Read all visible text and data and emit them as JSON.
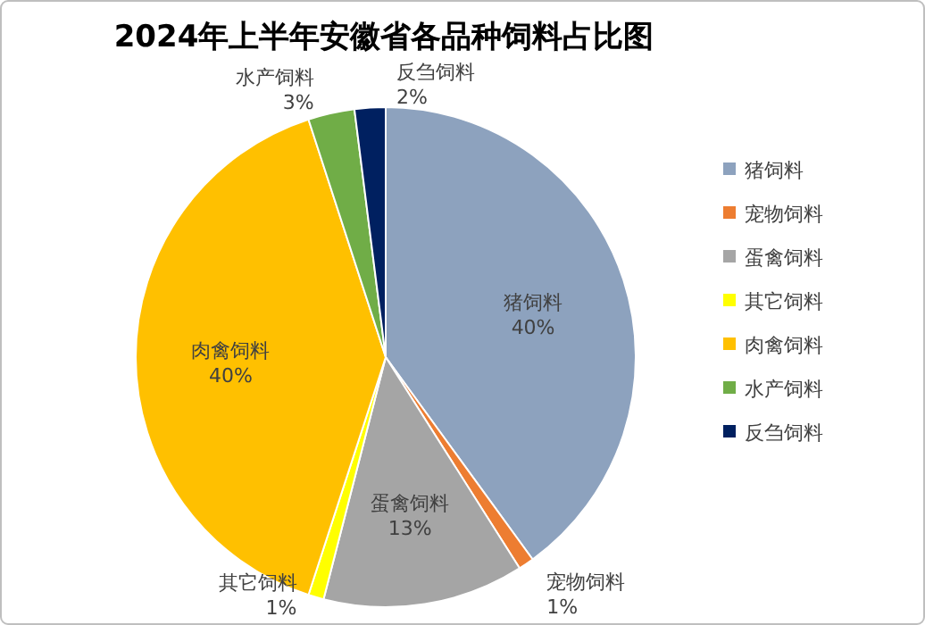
{
  "chart_data": {
    "type": "pie",
    "title": "2024年上半年安徽省各品种饲料占比图",
    "categories": [
      "猪饲料",
      "宠物饲料",
      "蛋禽饲料",
      "其它饲料",
      "肉禽饲料",
      "水产饲料",
      "反刍饲料"
    ],
    "values": [
      40,
      1,
      13,
      1,
      40,
      3,
      2
    ],
    "colors": [
      "#8da2be",
      "#ed7d31",
      "#a5a5a5",
      "#ffff00",
      "#ffc000",
      "#70ad47",
      "#002060"
    ],
    "value_labels": [
      "40%",
      "1%",
      "13%",
      "1%",
      "40%",
      "3%",
      "2%"
    ],
    "legend": "right"
  }
}
